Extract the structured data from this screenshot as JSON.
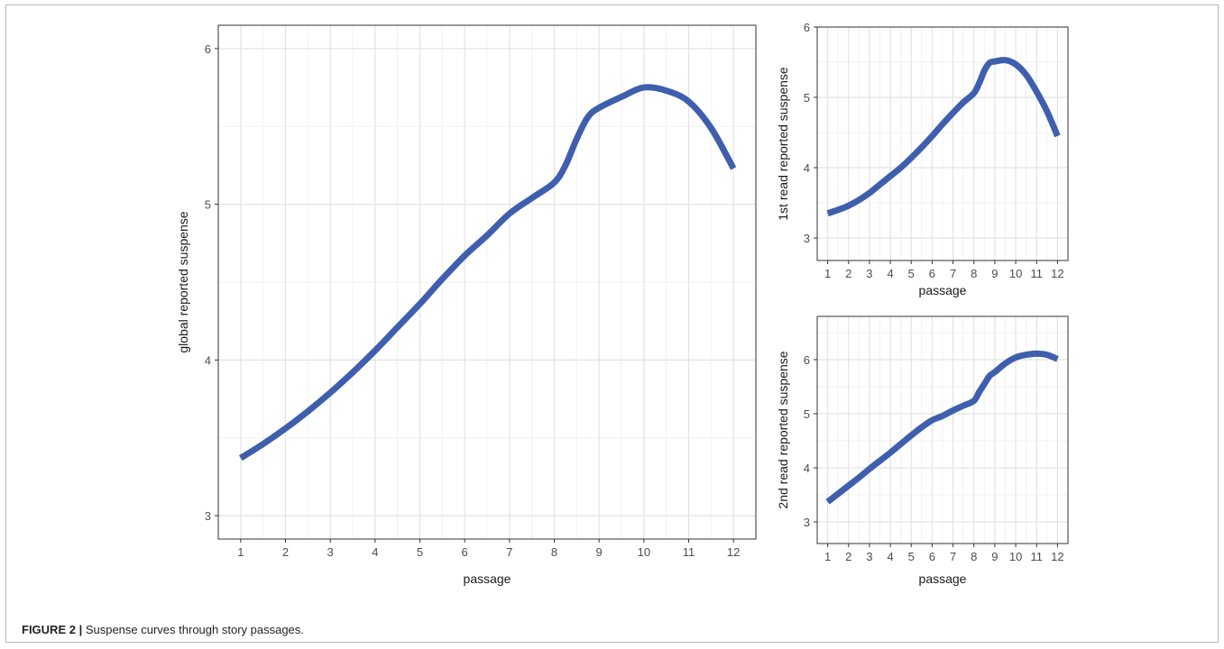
{
  "caption": {
    "label": "FIGURE 2 |",
    "text": " Suspense curves through story passages."
  },
  "colors": {
    "line": "#3f5fae",
    "grid_major": "#e3e3e3",
    "grid_minor": "#f1f1f1",
    "axis": "#333333"
  },
  "chart_data": [
    {
      "type": "line",
      "xlabel": "passage",
      "ylabel": "global reported suspense",
      "xlim": [
        0.5,
        12.5
      ],
      "ylim": [
        2.85,
        6.15
      ],
      "xticks": [
        1,
        2,
        3,
        4,
        5,
        6,
        7,
        8,
        9,
        10,
        11,
        12
      ],
      "yticks": [
        3,
        4,
        5,
        6
      ],
      "grid": true,
      "series": [
        {
          "x": [
            1,
            1.5,
            2,
            2.5,
            3,
            3.5,
            4,
            4.5,
            5,
            5.5,
            6,
            6.5,
            7,
            7.5,
            8,
            8.25,
            8.5,
            8.75,
            9,
            9.5,
            10,
            10.5,
            11,
            11.5,
            12
          ],
          "values": [
            3.37,
            3.46,
            3.56,
            3.67,
            3.79,
            3.92,
            4.06,
            4.21,
            4.36,
            4.52,
            4.67,
            4.8,
            4.94,
            5.04,
            5.14,
            5.25,
            5.42,
            5.56,
            5.62,
            5.69,
            5.75,
            5.73,
            5.66,
            5.49,
            5.23
          ]
        }
      ]
    },
    {
      "type": "line",
      "xlabel": "passage",
      "ylabel": "1st read reported suspense",
      "xlim": [
        0.5,
        12.5
      ],
      "ylim": [
        2.68,
        6.0
      ],
      "xticks": [
        1,
        2,
        3,
        4,
        5,
        6,
        7,
        8,
        9,
        10,
        11,
        12
      ],
      "yticks": [
        3,
        4,
        5,
        6
      ],
      "grid": true,
      "series": [
        {
          "x": [
            1,
            1.5,
            2,
            2.5,
            3,
            3.5,
            4,
            4.5,
            5,
            5.5,
            6,
            6.5,
            7,
            7.5,
            8,
            8.25,
            8.5,
            8.75,
            9,
            9.5,
            10,
            10.5,
            11,
            11.5,
            12
          ],
          "values": [
            3.35,
            3.4,
            3.46,
            3.54,
            3.64,
            3.76,
            3.88,
            4.0,
            4.14,
            4.29,
            4.45,
            4.62,
            4.78,
            4.93,
            5.06,
            5.2,
            5.38,
            5.49,
            5.51,
            5.53,
            5.47,
            5.32,
            5.08,
            4.8,
            4.45
          ]
        }
      ]
    },
    {
      "type": "line",
      "xlabel": "passage",
      "ylabel": "2nd read reported suspense",
      "xlim": [
        0.5,
        12.5
      ],
      "ylim": [
        2.6,
        6.8
      ],
      "xticks": [
        1,
        2,
        3,
        4,
        5,
        6,
        7,
        8,
        9,
        10,
        11,
        12
      ],
      "yticks": [
        3,
        4,
        5,
        6
      ],
      "grid": true,
      "series": [
        {
          "x": [
            1,
            1.5,
            2,
            2.5,
            3,
            3.5,
            4,
            4.5,
            5,
            5.5,
            6,
            6.5,
            7,
            7.5,
            8,
            8.25,
            8.5,
            8.75,
            9,
            9.5,
            10,
            10.5,
            11,
            11.5,
            12
          ],
          "values": [
            3.37,
            3.52,
            3.67,
            3.82,
            3.98,
            4.13,
            4.28,
            4.44,
            4.6,
            4.75,
            4.88,
            4.96,
            5.06,
            5.15,
            5.24,
            5.4,
            5.55,
            5.7,
            5.77,
            5.93,
            6.04,
            6.09,
            6.11,
            6.09,
            6.01
          ]
        }
      ]
    }
  ]
}
